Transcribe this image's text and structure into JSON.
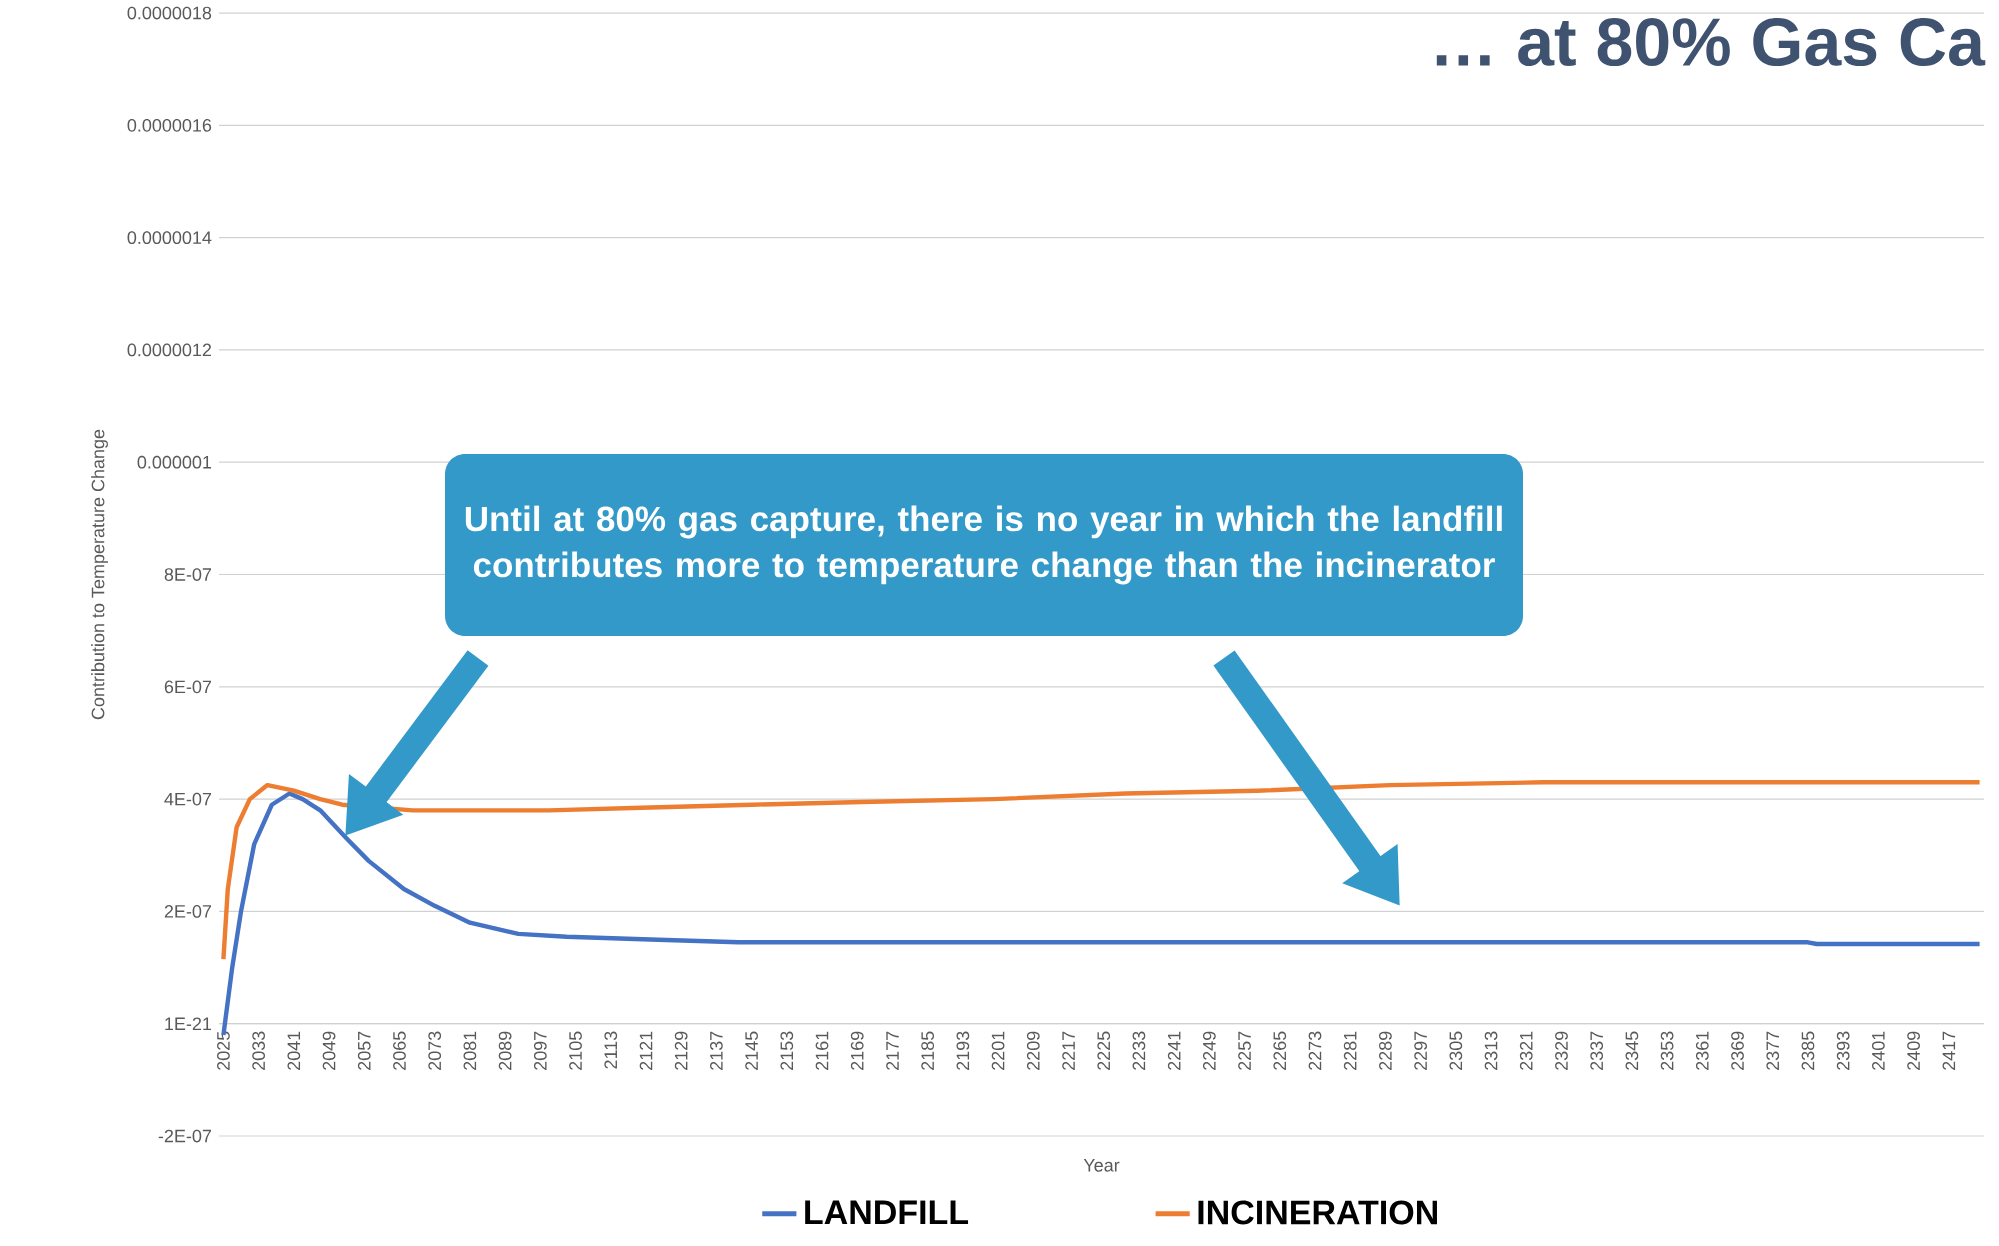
{
  "chart_data": {
    "type": "line",
    "title": "… at 80% Gas Ca",
    "xlabel": "Year",
    "ylabel": "Contribution to Temperature  Change",
    "annotations": [
      "Until at 80% gas capture, there is no year in which the landfill contributes more to temperature change than the incinerator"
    ],
    "series": [
      {
        "name": "LANDFILL",
        "color": "#4472c4",
        "x": [
          2025,
          2027,
          2029,
          2032,
          2036,
          2040,
          2043,
          2047,
          2053,
          2058,
          2066,
          2073,
          2081,
          2092,
          2103,
          2122,
          2142,
          2385,
          2387,
          2424
        ],
        "values": [
          -2e-08,
          1e-07,
          2e-07,
          3.2e-07,
          3.9e-07,
          4.1e-07,
          4e-07,
          3.8e-07,
          3.3e-07,
          2.9e-07,
          2.4e-07,
          2.1e-07,
          1.8e-07,
          1.6e-07,
          1.55e-07,
          1.5e-07,
          1.45e-07,
          1.45e-07,
          1.42e-07,
          1.42e-07
        ]
      },
      {
        "name": "INCINERATION",
        "color": "#ed7d31",
        "x": [
          2025,
          2026,
          2028,
          2031,
          2035,
          2041,
          2047,
          2052,
          2068,
          2099,
          2122,
          2145,
          2170,
          2200,
          2230,
          2260,
          2290,
          2325,
          2424
        ],
        "values": [
          1.15e-07,
          2.4e-07,
          3.5e-07,
          4e-07,
          4.25e-07,
          4.15e-07,
          4e-07,
          3.9e-07,
          3.8e-07,
          3.8e-07,
          3.85e-07,
          3.9e-07,
          3.95e-07,
          4e-07,
          4.1e-07,
          4.15e-07,
          4.25e-07,
          4.3e-07,
          4.3e-07
        ]
      }
    ],
    "xlim": [
      2024,
      2425
    ],
    "xticks": [
      2025,
      2033,
      2041,
      2049,
      2057,
      2065,
      2073,
      2081,
      2089,
      2097,
      2105,
      2113,
      2121,
      2129,
      2137,
      2145,
      2153,
      2161,
      2169,
      2177,
      2185,
      2193,
      2201,
      2209,
      2217,
      2225,
      2233,
      2241,
      2249,
      2257,
      2265,
      2273,
      2281,
      2289,
      2297,
      2305,
      2313,
      2321,
      2329,
      2337,
      2345,
      2353,
      2361,
      2369,
      2377,
      2385,
      2393,
      2401,
      2409,
      2417
    ],
    "ylim": [
      -2e-07,
      1.8e-06
    ],
    "yticks": [
      {
        "value": -2e-07,
        "label": "-2E-07"
      },
      {
        "value": 0,
        "label": "1E-21"
      },
      {
        "value": 2e-07,
        "label": "2E-07"
      },
      {
        "value": 4e-07,
        "label": "4E-07"
      },
      {
        "value": 6e-07,
        "label": "6E-07"
      },
      {
        "value": 8e-07,
        "label": "8E-07"
      },
      {
        "value": 1e-06,
        "label": "0.000001"
      },
      {
        "value": 1.2e-06,
        "label": "0.0000012"
      },
      {
        "value": 1.4e-06,
        "label": "0.0000014"
      },
      {
        "value": 1.6e-06,
        "label": "0.0000016"
      },
      {
        "value": 1.8e-06,
        "label": "0.0000018"
      }
    ],
    "grid": "y",
    "legend": "bottom",
    "line_style": "solid",
    "marker": "none"
  }
}
